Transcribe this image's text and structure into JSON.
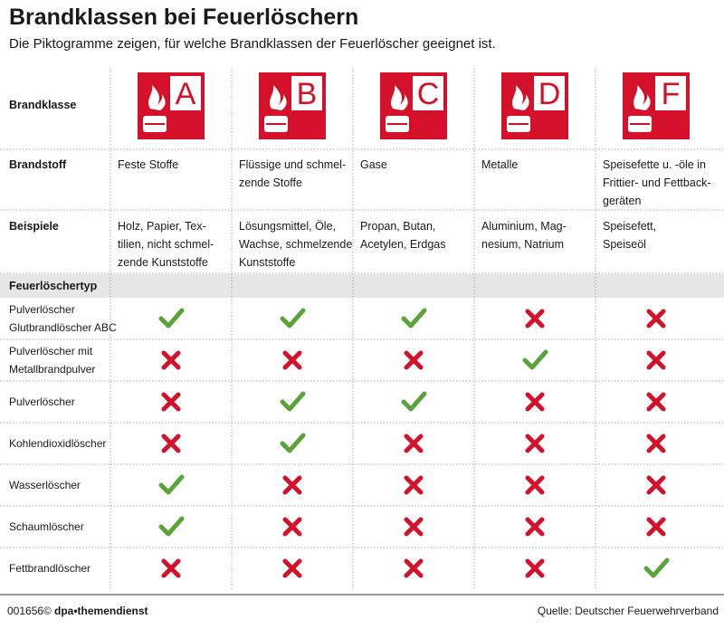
{
  "header": {
    "title": "Brandklassen bei Feuerlöschern",
    "subtitle": "Die Piktogramme zeigen, für welche Brandklassen der Feuerlöscher geeignet ist."
  },
  "table": {
    "row_labels": {
      "class": "Brandklasse",
      "material": "Brandstoff",
      "examples": "Beispiele",
      "types": "Feuerlöschertyp"
    },
    "classes": [
      {
        "letter": "A",
        "material": "Feste Stoffe",
        "examples": "Holz, Papier, Tex-\ntilien, nicht schmel-\nzende Kunststoffe"
      },
      {
        "letter": "B",
        "material": "Flüssige und schmel-\nzende Stoffe",
        "examples": "Lösungsmittel, Öle,\nWachse, schmelzende\nKunststoffe"
      },
      {
        "letter": "C",
        "material": "Gase",
        "examples": "Propan, Butan,\nAcetylen, Erdgas"
      },
      {
        "letter": "D",
        "material": "Metalle",
        "examples": "Aluminium, Mag-\nnesium, Natrium"
      },
      {
        "letter": "F",
        "material": "Speisefette u. -öle in\nFrittier- und Fettback-\ngeräten",
        "examples": "Speisefett,\nSpeiseöl"
      }
    ],
    "extinguishers": [
      {
        "name": "Pulverlöscher\nGlutbrandlöscher ABC",
        "suitable": [
          true,
          true,
          true,
          false,
          false
        ]
      },
      {
        "name": "Pulverlöscher mit\nMetallbrandpulver",
        "suitable": [
          false,
          false,
          false,
          true,
          false
        ]
      },
      {
        "name": "Pulverlöscher",
        "suitable": [
          false,
          true,
          true,
          false,
          false
        ]
      },
      {
        "name": "Kohlendioxidlöscher",
        "suitable": [
          false,
          true,
          false,
          false,
          false
        ]
      },
      {
        "name": "Wasserlöscher",
        "suitable": [
          true,
          false,
          false,
          false,
          false
        ]
      },
      {
        "name": "Schaumlöscher",
        "suitable": [
          true,
          false,
          false,
          false,
          false
        ]
      },
      {
        "name": "Fettbrandlöscher",
        "suitable": [
          false,
          false,
          false,
          false,
          true
        ]
      }
    ]
  },
  "footer": {
    "id": "001656©",
    "agency": "dpa•themendienst",
    "source": "Quelle: Deutscher Feuerwehrverband"
  }
}
